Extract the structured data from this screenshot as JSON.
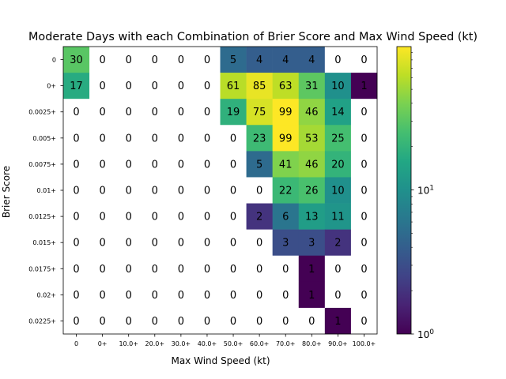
{
  "chart_data": {
    "type": "heatmap",
    "title": "Moderate Days with each Combination of Brier Score and Max Wind Speed (kt)",
    "xlabel": "Max Wind Speed (kt)",
    "ylabel": "Brier Score",
    "x_categories": [
      "0",
      "0+",
      "10.0+",
      "20.0+",
      "30.0+",
      "40.0+",
      "50.0+",
      "60.0+",
      "70.0+",
      "80.0+",
      "90.0+",
      "100.0+"
    ],
    "y_categories": [
      "0",
      "0+",
      "0.0025+",
      "0.005+",
      "0.0075+",
      "0.01+",
      "0.0125+",
      "0.015+",
      "0.0175+",
      "0.02+",
      "0.0225+"
    ],
    "values": [
      [
        30,
        0,
        0,
        0,
        0,
        0,
        5,
        4,
        4,
        4,
        0,
        0
      ],
      [
        17,
        0,
        0,
        0,
        0,
        0,
        61,
        85,
        63,
        31,
        10,
        1
      ],
      [
        0,
        0,
        0,
        0,
        0,
        0,
        19,
        75,
        99,
        46,
        14,
        0
      ],
      [
        0,
        0,
        0,
        0,
        0,
        0,
        0,
        23,
        99,
        53,
        25,
        0
      ],
      [
        0,
        0,
        0,
        0,
        0,
        0,
        0,
        5,
        41,
        46,
        20,
        0
      ],
      [
        0,
        0,
        0,
        0,
        0,
        0,
        0,
        0,
        22,
        26,
        10,
        0
      ],
      [
        0,
        0,
        0,
        0,
        0,
        0,
        0,
        2,
        6,
        13,
        11,
        0
      ],
      [
        0,
        0,
        0,
        0,
        0,
        0,
        0,
        0,
        3,
        3,
        2,
        0
      ],
      [
        0,
        0,
        0,
        0,
        0,
        0,
        0,
        0,
        0,
        1,
        0,
        0
      ],
      [
        0,
        0,
        0,
        0,
        0,
        0,
        0,
        0,
        0,
        1,
        0,
        0
      ],
      [
        0,
        0,
        0,
        0,
        0,
        0,
        0,
        0,
        0,
        0,
        1,
        0
      ]
    ],
    "color_scale": "log",
    "colormap": "viridis",
    "zero_color": "#ffffff",
    "clim": [
      1,
      99
    ],
    "colorbar_ticks": [
      {
        "value": 1,
        "label": "10^0"
      },
      {
        "value": 10,
        "label": "10^1"
      }
    ],
    "grid": false
  }
}
